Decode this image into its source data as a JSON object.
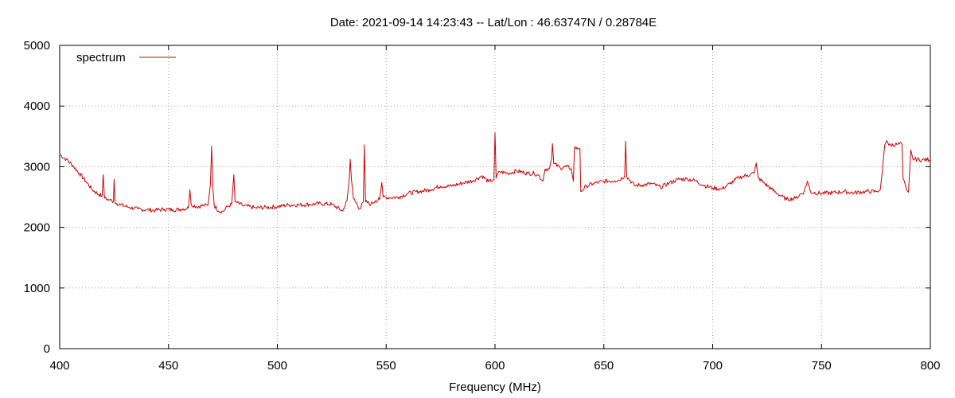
{
  "chart_data": {
    "type": "line",
    "title": "Date: 2021-09-14 14:23:43  --  Lat/Lon : 46.63747N / 0.28784E",
    "xlabel": "Frequency (MHz)",
    "ylabel": "",
    "xlim": [
      400,
      800
    ],
    "ylim": [
      0,
      5000
    ],
    "xticks": [
      400,
      450,
      500,
      550,
      600,
      650,
      700,
      750,
      800
    ],
    "yticks": [
      0,
      1000,
      2000,
      3000,
      4000,
      5000
    ],
    "grid": true,
    "legend": "top-left",
    "series": [
      {
        "name": "spectrum",
        "color": "#cc0000",
        "points": [
          [
            400,
            3200
          ],
          [
            403,
            3120
          ],
          [
            406,
            3020
          ],
          [
            409,
            2890
          ],
          [
            412,
            2760
          ],
          [
            415,
            2620
          ],
          [
            418,
            2540
          ],
          [
            419.5,
            2520
          ],
          [
            420,
            2870
          ],
          [
            420.6,
            2480
          ],
          [
            423,
            2450
          ],
          [
            424.7,
            2430
          ],
          [
            425,
            2790
          ],
          [
            425.4,
            2410
          ],
          [
            428,
            2370
          ],
          [
            432,
            2330
          ],
          [
            436,
            2300
          ],
          [
            440,
            2290
          ],
          [
            444,
            2280
          ],
          [
            448,
            2300
          ],
          [
            452,
            2290
          ],
          [
            456,
            2300
          ],
          [
            459.2,
            2320
          ],
          [
            459.8,
            2620
          ],
          [
            460.4,
            2380
          ],
          [
            463,
            2340
          ],
          [
            466,
            2360
          ],
          [
            468,
            2360
          ],
          [
            469.3,
            2720
          ],
          [
            469.8,
            3340
          ],
          [
            470.4,
            2650
          ],
          [
            471,
            2360
          ],
          [
            473,
            2270
          ],
          [
            475,
            2260
          ],
          [
            477,
            2340
          ],
          [
            479,
            2380
          ],
          [
            480,
            2870
          ],
          [
            480.6,
            2420
          ],
          [
            484,
            2360
          ],
          [
            490,
            2320
          ],
          [
            495,
            2330
          ],
          [
            500,
            2340
          ],
          [
            505,
            2370
          ],
          [
            510,
            2370
          ],
          [
            515,
            2380
          ],
          [
            520,
            2390
          ],
          [
            525,
            2380
          ],
          [
            530,
            2270
          ],
          [
            532,
            2440
          ],
          [
            533,
            2780
          ],
          [
            533.5,
            3120
          ],
          [
            534,
            2800
          ],
          [
            535,
            2470
          ],
          [
            538,
            2300
          ],
          [
            539.5,
            2420
          ],
          [
            540,
            3360
          ],
          [
            540.5,
            2420
          ],
          [
            543,
            2380
          ],
          [
            545,
            2440
          ],
          [
            547,
            2460
          ],
          [
            548,
            2740
          ],
          [
            548.6,
            2500
          ],
          [
            552,
            2490
          ],
          [
            556,
            2500
          ],
          [
            560,
            2560
          ],
          [
            565,
            2590
          ],
          [
            570,
            2620
          ],
          [
            575,
            2680
          ],
          [
            580,
            2680
          ],
          [
            585,
            2730
          ],
          [
            590,
            2770
          ],
          [
            594,
            2850
          ],
          [
            597,
            2750
          ],
          [
            599.5,
            2790
          ],
          [
            600,
            3560
          ],
          [
            600.5,
            2810
          ],
          [
            602,
            2920
          ],
          [
            606,
            2890
          ],
          [
            610,
            2930
          ],
          [
            615,
            2890
          ],
          [
            618,
            2890
          ],
          [
            620,
            2860
          ],
          [
            622,
            2760
          ],
          [
            623,
            2960
          ],
          [
            625,
            2970
          ],
          [
            626,
            3140
          ],
          [
            626.4,
            3380
          ],
          [
            627,
            3050
          ],
          [
            630,
            2980
          ],
          [
            633,
            3000
          ],
          [
            635,
            2970
          ],
          [
            636,
            2760
          ],
          [
            636.5,
            3320
          ],
          [
            638,
            3290
          ],
          [
            639,
            3300
          ],
          [
            639.4,
            2590
          ],
          [
            642,
            2680
          ],
          [
            645,
            2720
          ],
          [
            650,
            2760
          ],
          [
            655,
            2770
          ],
          [
            657,
            2780
          ],
          [
            659.6,
            2850
          ],
          [
            660,
            3420
          ],
          [
            660.5,
            2840
          ],
          [
            664,
            2690
          ],
          [
            668,
            2700
          ],
          [
            672,
            2720
          ],
          [
            676,
            2660
          ],
          [
            680,
            2730
          ],
          [
            684,
            2790
          ],
          [
            688,
            2800
          ],
          [
            692,
            2770
          ],
          [
            696,
            2690
          ],
          [
            700,
            2650
          ],
          [
            704,
            2630
          ],
          [
            708,
            2720
          ],
          [
            712,
            2820
          ],
          [
            716,
            2860
          ],
          [
            719,
            2890
          ],
          [
            720,
            3060
          ],
          [
            721,
            2810
          ],
          [
            724,
            2720
          ],
          [
            727,
            2630
          ],
          [
            730,
            2550
          ],
          [
            734,
            2460
          ],
          [
            738,
            2480
          ],
          [
            742,
            2590
          ],
          [
            743.5,
            2760
          ],
          [
            745,
            2580
          ],
          [
            750,
            2560
          ],
          [
            755,
            2570
          ],
          [
            760,
            2590
          ],
          [
            765,
            2570
          ],
          [
            770,
            2590
          ],
          [
            775,
            2590
          ],
          [
            777,
            2620
          ],
          [
            778,
            2940
          ],
          [
            779,
            3350
          ],
          [
            780,
            3430
          ],
          [
            781,
            3350
          ],
          [
            785,
            3370
          ],
          [
            787,
            3370
          ],
          [
            787.5,
            2800
          ],
          [
            789,
            2620
          ],
          [
            790,
            2580
          ],
          [
            791,
            3280
          ],
          [
            792,
            3130
          ],
          [
            796,
            3110
          ],
          [
            800,
            3120
          ]
        ]
      }
    ]
  }
}
